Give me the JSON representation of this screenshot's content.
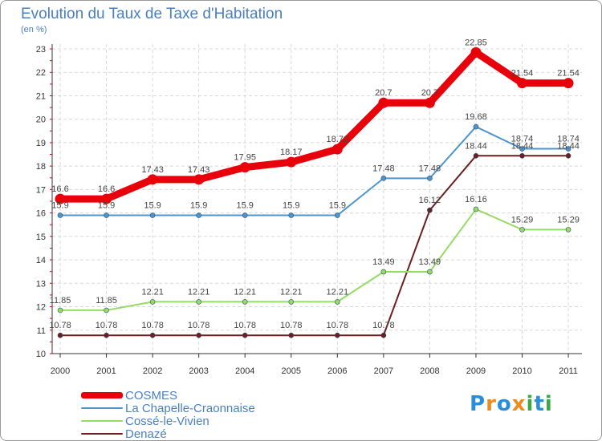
{
  "chart_data": {
    "type": "line",
    "title": "Evolution du Taux de Taxe d'Habitation",
    "ylabel": "(en %)",
    "categories": [
      "2000",
      "2001",
      "2002",
      "2003",
      "2004",
      "2005",
      "2006",
      "2007",
      "2008",
      "2009",
      "2010",
      "2011"
    ],
    "ylim": [
      10,
      23
    ],
    "yticks": [
      10,
      11,
      12,
      13,
      14,
      15,
      16,
      17,
      18,
      19,
      20,
      21,
      22,
      23
    ],
    "grid": true,
    "legend_position": "bottom-left",
    "series": [
      {
        "name": "COSMES",
        "color": "#e8000b",
        "values": [
          16.6,
          16.6,
          17.43,
          17.43,
          17.95,
          18.17,
          18.72,
          20.7,
          20.7,
          22.85,
          21.54,
          21.54
        ],
        "labels": [
          "16.6",
          "16.6",
          "17.43",
          "17.43",
          "17.95",
          "18.17",
          "18.72",
          "20.7",
          "20.7",
          "22.85",
          "21.54",
          "21.54"
        ]
      },
      {
        "name": "La Chapelle-Craonnaise",
        "color": "#4f95cd",
        "values": [
          15.9,
          15.9,
          15.9,
          15.9,
          15.9,
          15.9,
          15.9,
          17.48,
          17.48,
          19.68,
          18.74,
          18.74
        ],
        "labels": [
          "15.9",
          "15.9",
          "15.9",
          "15.9",
          "15.9",
          "15.9",
          "15.9",
          "17.48",
          "17.48",
          "19.68",
          "18.74",
          "18.74"
        ]
      },
      {
        "name": "Cossé-le-Vivien",
        "color": "#96db63",
        "values": [
          11.85,
          11.85,
          12.21,
          12.21,
          12.21,
          12.21,
          12.21,
          13.49,
          13.49,
          16.16,
          15.29,
          15.29
        ],
        "labels": [
          "11.85",
          "11.85",
          "12.21",
          "12.21",
          "12.21",
          "12.21",
          "12.21",
          "13.49",
          "13.49",
          "16.16",
          "15.29",
          "15.29"
        ]
      },
      {
        "name": "Denazé",
        "color": "#6b1f1f",
        "values": [
          10.78,
          10.78,
          10.78,
          10.78,
          10.78,
          10.78,
          10.78,
          10.78,
          16.12,
          18.44,
          18.44,
          18.44
        ],
        "labels": [
          "10.78",
          "10.78",
          "10.78",
          "10.78",
          "10.78",
          "10.78",
          "10.78",
          "10.78",
          "16.12",
          "18.44",
          "18.44",
          "18.44"
        ]
      }
    ]
  },
  "logo": {
    "text": "Proxiti",
    "letters": [
      "P",
      "r",
      "o",
      "x",
      "i",
      "t",
      "i"
    ],
    "colors": [
      "#2a8fd8",
      "#f08a1c",
      "#2a8fd8",
      "#f08a1c",
      "#39a845",
      "#2a8fd8",
      "#39a845"
    ]
  }
}
